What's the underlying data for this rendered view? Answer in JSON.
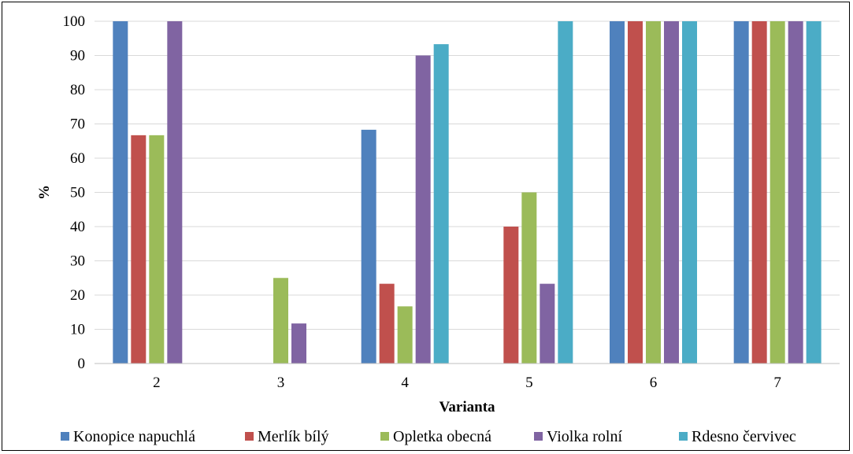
{
  "chart_data": {
    "type": "bar",
    "title": "",
    "xlabel": "Varianta",
    "ylabel": "%",
    "ylim": [
      0,
      100
    ],
    "yticks": [
      0,
      10,
      20,
      30,
      40,
      50,
      60,
      70,
      80,
      90,
      100
    ],
    "grid": true,
    "legend_position": "bottom",
    "categories": [
      "2",
      "3",
      "4",
      "5",
      "6",
      "7"
    ],
    "series": [
      {
        "name": "Konopice napuchlá",
        "color": "#4F81BD",
        "values": [
          100,
          0,
          68.3,
          0,
          100,
          100
        ]
      },
      {
        "name": "Merlík bílý",
        "color": "#C0504D",
        "values": [
          66.7,
          0,
          23.3,
          40,
          100,
          100
        ]
      },
      {
        "name": "Opletka obecná",
        "color": "#9BBB59",
        "values": [
          66.7,
          25,
          16.7,
          50,
          100,
          100
        ]
      },
      {
        "name": "Violka rolní",
        "color": "#8064A2",
        "values": [
          100,
          11.7,
          90,
          23.3,
          100,
          100
        ]
      },
      {
        "name": "Rdesno červivec",
        "color": "#4BACC6",
        "values": [
          0,
          0,
          93.3,
          100,
          100,
          100
        ]
      }
    ]
  }
}
